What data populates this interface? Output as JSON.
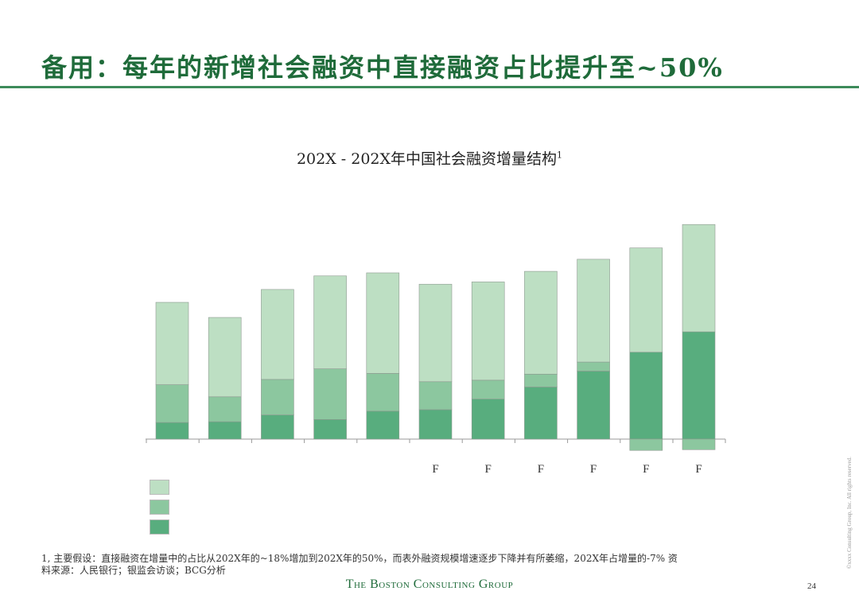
{
  "slide": {
    "title": "备用：每年的新增社会融资中直接融资占比提升至~50%",
    "page_number": "24",
    "brand": "The Boston Consulting Group",
    "copyright": "©xxxx Consulting Group, Inc. All rights reserved.",
    "footnote_line1": "1, 主要假设：直接融资在增量中的占比从202X年的~18%增加到202X年的50%，而表外融资规模增速逐步下降并有所萎缩，202X年占增量的-7% 资",
    "footnote_line2": "料来源：人民银行；银监会访谈；BCG分析"
  },
  "colors": {
    "top_segment": "#bddfc3",
    "middle_segment": "#8cc79f",
    "bottom_segment": "#58ad7e",
    "accent": "#1f6b3a",
    "rule": "#3d8b5a"
  },
  "chart_data": {
    "type": "bar",
    "stacked": true,
    "title": "202X - 202X年中国社会融资增量结构",
    "title_superscript": "1",
    "categories": [
      "",
      "",
      "",
      "",
      "",
      "F",
      "F",
      "F",
      "F",
      "F",
      "F"
    ],
    "series": [
      {
        "name": "",
        "values": [
          22,
          23,
          32,
          26,
          37,
          39,
          53,
          69,
          90,
          115,
          142
        ]
      },
      {
        "name": "",
        "values": [
          50,
          33,
          47,
          67,
          50,
          37,
          25,
          17,
          12,
          -15,
          -14
        ]
      },
      {
        "name": "",
        "values": [
          109,
          105,
          119,
          123,
          133,
          129,
          130,
          136,
          136,
          138,
          142
        ]
      }
    ],
    "ylim": [
      0,
      300
    ],
    "xlabel": "",
    "ylabel": "",
    "legend_position": "bottom-left"
  }
}
